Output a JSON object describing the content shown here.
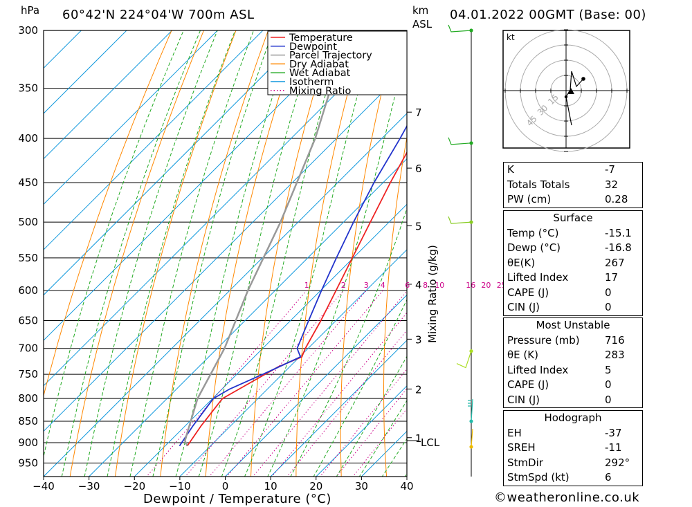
{
  "header": {
    "location": "60°42'N 224°04'W 700m ASL",
    "datetime": "04.01.2022 00GMT (Base: 00)",
    "pressure_unit": "hPa",
    "height_unit_line1": "km",
    "height_unit_line2": "ASL"
  },
  "chart_data": {
    "type": "line",
    "title": "60°42'N 224°04'W 700m ASL",
    "xlabel": "Dewpoint / Temperature (°C)",
    "ylabel": "hPa",
    "secondary_ylabel": "Mixing Ratio (g/kg)",
    "x_ticks": [
      -40,
      -30,
      -20,
      -10,
      0,
      10,
      20,
      30,
      40
    ],
    "y_ticks": [
      300,
      350,
      400,
      450,
      500,
      550,
      600,
      650,
      700,
      750,
      800,
      850,
      900,
      950
    ],
    "ylim": [
      300,
      985
    ],
    "xlim": [
      -40,
      40
    ],
    "y_scale": "log",
    "height_ticks": [
      {
        "km": "7",
        "p": 373
      },
      {
        "km": "6",
        "p": 433
      },
      {
        "km": "5",
        "p": 505
      },
      {
        "km": "4",
        "p": 590
      },
      {
        "km": "3",
        "p": 683
      },
      {
        "km": "2",
        "p": 780
      },
      {
        "km": "1",
        "p": 888
      }
    ],
    "lcl": {
      "label": "LCL",
      "p": 895
    },
    "mixing_ratio_labels": [
      "1",
      "2",
      "3",
      "4",
      "6",
      "8",
      "10",
      "16",
      "20",
      "25"
    ],
    "legend": {
      "position": "top-right",
      "entries": [
        {
          "name": "Temperature",
          "color": "#ee2222",
          "style": "solid"
        },
        {
          "name": "Dewpoint",
          "color": "#2233cc",
          "style": "solid"
        },
        {
          "name": "Parcel Trajectory",
          "color": "#999999",
          "style": "solid"
        },
        {
          "name": "Dry Adiabat",
          "color": "#ff8800",
          "style": "solid"
        },
        {
          "name": "Wet Adiabat",
          "color": "#22aa22",
          "style": "solid"
        },
        {
          "name": "Isotherm",
          "color": "#1199dd",
          "style": "solid"
        },
        {
          "name": "Mixing Ratio",
          "color": "#cc0088",
          "style": "dotted"
        }
      ]
    },
    "series": [
      {
        "name": "Temperature",
        "color": "#ee2222",
        "points": [
          [
            -15.1,
            908
          ],
          [
            -16.5,
            860
          ],
          [
            -17.8,
            800
          ],
          [
            -15.0,
            765
          ],
          [
            -12.5,
            735
          ],
          [
            -9.5,
            716
          ],
          [
            -10.6,
            700
          ],
          [
            -13.3,
            650
          ],
          [
            -16.6,
            600
          ],
          [
            -20.2,
            550
          ],
          [
            -24.1,
            500
          ],
          [
            -28.4,
            450
          ],
          [
            -32.8,
            400
          ],
          [
            -35.2,
            378
          ],
          [
            -31.2,
            365
          ],
          [
            -31.8,
            350
          ],
          [
            -31.9,
            300
          ]
        ]
      },
      {
        "name": "Dewpoint",
        "color": "#2233cc",
        "points": [
          [
            -16.8,
            908
          ],
          [
            -17.2,
            895
          ],
          [
            -18.3,
            860
          ],
          [
            -19.8,
            800
          ],
          [
            -18.3,
            780
          ],
          [
            -13.6,
            745
          ],
          [
            -9.8,
            716
          ],
          [
            -12.4,
            700
          ],
          [
            -16.0,
            650
          ],
          [
            -19.8,
            600
          ],
          [
            -23.7,
            550
          ],
          [
            -27.8,
            500
          ],
          [
            -32.0,
            450
          ],
          [
            -36.0,
            400
          ],
          [
            -37.9,
            380
          ],
          [
            -34.4,
            362
          ],
          [
            -34.6,
            350
          ],
          [
            -32.4,
            300
          ]
        ]
      },
      {
        "name": "Parcel Trajectory",
        "color": "#999999",
        "points": [
          [
            -15.1,
            908
          ],
          [
            -16.8,
            895
          ],
          [
            -23.3,
            800
          ],
          [
            -28.4,
            700
          ],
          [
            -36.0,
            600
          ],
          [
            -43.9,
            500
          ],
          [
            -54.7,
            400
          ],
          [
            -62.3,
            350
          ]
        ]
      }
    ],
    "wind_barbs": [
      {
        "p": 300,
        "color": "#22aa22"
      },
      {
        "p": 405,
        "color": "#22aa22"
      },
      {
        "p": 500,
        "color": "#88cc22"
      },
      {
        "p": 705,
        "color": "#aadd22"
      },
      {
        "p": 850,
        "color": "#22bbaa"
      },
      {
        "p": 910,
        "color": "#eebb00"
      }
    ],
    "hodograph": {
      "unit": "kt",
      "ring_labels": [
        "15",
        "30",
        "45"
      ]
    }
  },
  "indices": {
    "general": [
      {
        "label": "K",
        "value": "-7"
      },
      {
        "label": "Totals Totals",
        "value": "32"
      },
      {
        "label": "PW (cm)",
        "value": "0.28"
      }
    ],
    "surface": {
      "title": "Surface",
      "rows": [
        {
          "label": "Temp (°C)",
          "value": "-15.1"
        },
        {
          "label": "Dewp (°C)",
          "value": "-16.8"
        },
        {
          "label": "θE(K)",
          "value": "267"
        },
        {
          "label": "Lifted Index",
          "value": "17"
        },
        {
          "label": "CAPE (J)",
          "value": "0"
        },
        {
          "label": "CIN (J)",
          "value": "0"
        }
      ]
    },
    "most_unstable": {
      "title": "Most Unstable",
      "rows": [
        {
          "label": "Pressure (mb)",
          "value": "716"
        },
        {
          "label": "θE (K)",
          "value": "283"
        },
        {
          "label": "Lifted Index",
          "value": "5"
        },
        {
          "label": "CAPE (J)",
          "value": "0"
        },
        {
          "label": "CIN (J)",
          "value": "0"
        }
      ]
    },
    "hodograph": {
      "title": "Hodograph",
      "rows": [
        {
          "label": "EH",
          "value": "-37"
        },
        {
          "label": "SREH",
          "value": "-11"
        },
        {
          "label": "StmDir",
          "value": "292°"
        },
        {
          "label": "StmSpd (kt)",
          "value": "6"
        }
      ]
    }
  },
  "footer": {
    "credit": "©weatheronline.co.uk"
  }
}
